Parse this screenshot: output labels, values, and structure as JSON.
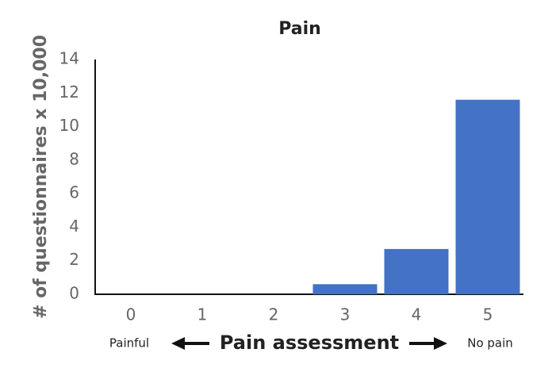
{
  "chart_data": {
    "type": "bar",
    "title": "Pain",
    "y_label": "# of questionnaires x 10,000",
    "x_label": "Pain assessment",
    "annotations": [
      "Painful",
      "No pain"
    ],
    "categories": [
      "0",
      "1",
      "2",
      "3",
      "4",
      "5"
    ],
    "values": [
      0,
      0,
      0,
      0.6,
      2.7,
      11.6
    ],
    "color": "#4472c4",
    "ylim": [
      0,
      14
    ],
    "yticks": [
      0,
      2,
      4,
      6,
      8,
      10,
      12,
      14
    ],
    "grid": false
  }
}
